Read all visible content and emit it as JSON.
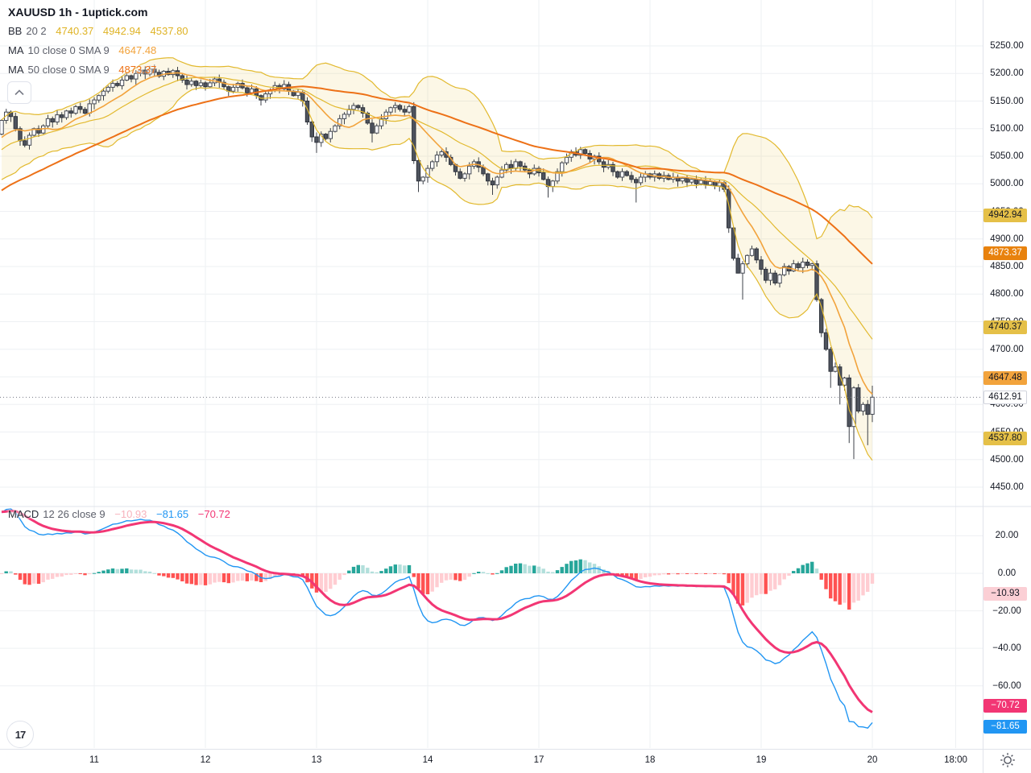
{
  "header": {
    "title": "XAUUSD 1h - 1uptick.com"
  },
  "legend": {
    "bb": {
      "name": "BB",
      "params": "20 2",
      "values": [
        "4740.37",
        "4942.94",
        "4537.80"
      ],
      "value_color": "#dfb325"
    },
    "ma10": {
      "name": "MA",
      "params": "10 close 0 SMA 9",
      "value": "4647.48",
      "value_color": "#f2a33c"
    },
    "ma50": {
      "name": "MA",
      "params": "50 close 0 SMA 9",
      "value": "4873.37",
      "value_color": "#ed7117"
    },
    "macd": {
      "name": "MACD",
      "params": "12 26 close 9",
      "values": [
        {
          "text": "−10.93",
          "color": "#f7b2bc"
        },
        {
          "text": "−81.65",
          "color": "#2196f3"
        },
        {
          "text": "−70.72",
          "color": "#f23674"
        }
      ]
    }
  },
  "price_axis": {
    "ticks": [
      {
        "text": "5250.00",
        "value": 5250
      },
      {
        "text": "5200.00",
        "value": 5200
      },
      {
        "text": "5150.00",
        "value": 5150
      },
      {
        "text": "5100.00",
        "value": 5100
      },
      {
        "text": "5050.00",
        "value": 5050
      },
      {
        "text": "5000.00",
        "value": 5000
      },
      {
        "text": "4950.00",
        "value": 4950
      },
      {
        "text": "4900.00",
        "value": 4900
      },
      {
        "text": "4850.00",
        "value": 4850
      },
      {
        "text": "4800.00",
        "value": 4800
      },
      {
        "text": "4750.00",
        "value": 4750
      },
      {
        "text": "4700.00",
        "value": 4700
      },
      {
        "text": "4650.00",
        "value": 4650
      },
      {
        "text": "4600.00",
        "value": 4600
      },
      {
        "text": "4550.00",
        "value": 4550
      },
      {
        "text": "4500.00",
        "value": 4500
      },
      {
        "text": "4450.00",
        "value": 4450
      }
    ],
    "badges": [
      {
        "name": "bb-upper-badge",
        "text": "4942.94",
        "value": 4942.94,
        "bg": "#e5c048",
        "fg": "#131722"
      },
      {
        "name": "ma50-badge",
        "text": "4873.37",
        "value": 4873.37,
        "bg": "#e8820e",
        "fg": "#ffffff"
      },
      {
        "name": "bb-basis-badge",
        "text": "4740.37",
        "value": 4740.37,
        "bg": "#e5c048",
        "fg": "#131722"
      },
      {
        "name": "ma10-badge",
        "text": "4647.48",
        "value": 4647.48,
        "bg": "#f2a33c",
        "fg": "#131722"
      },
      {
        "name": "bb-lower-badge",
        "text": "4537.80",
        "value": 4537.8,
        "bg": "#e5c048",
        "fg": "#131722"
      }
    ],
    "current": {
      "text": "4612.91",
      "value": 4612.91,
      "bg": "#ffffff",
      "fg": "#131722"
    }
  },
  "macd_axis": {
    "ticks": [
      {
        "text": "20.00",
        "value": 20
      },
      {
        "text": "0.00",
        "value": 0
      },
      {
        "text": "−20.00",
        "value": -20
      },
      {
        "text": "−40.00",
        "value": -40
      },
      {
        "text": "−60.00",
        "value": -60
      }
    ],
    "badges": [
      {
        "name": "macd-hist-badge",
        "text": "−10.93",
        "value": -10.93,
        "bg": "#fbcfd5",
        "fg": "#131722"
      },
      {
        "name": "macd-signal-badge",
        "text": "−70.72",
        "value": -70.72,
        "bg": "#f23674",
        "fg": "#ffffff"
      },
      {
        "name": "macd-line-badge",
        "text": "−81.65",
        "value": -81.65,
        "bg": "#2196f3",
        "fg": "#ffffff"
      }
    ]
  },
  "time_axis": {
    "ticks": [
      {
        "label": "11",
        "index": 20
      },
      {
        "label": "12",
        "index": 44
      },
      {
        "label": "13",
        "index": 68
      },
      {
        "label": "14",
        "index": 92
      },
      {
        "label": "17",
        "index": 116
      },
      {
        "label": "18",
        "index": 140
      },
      {
        "label": "19",
        "index": 164
      },
      {
        "label": "20",
        "index": 188
      },
      {
        "label": "18:00",
        "index": 206
      }
    ]
  },
  "chart_data": {
    "type": "candlestick",
    "symbol": "XAUUSD",
    "interval": "1h",
    "source": "1uptick.com",
    "price_axis_range": [
      4450,
      5250
    ],
    "macd_axis_range": [
      -90,
      25
    ],
    "candles_per_day": 24,
    "last_price": 4612.91,
    "closes": [
      5115,
      5130,
      5122,
      5100,
      5078,
      5070,
      5088,
      5100,
      5092,
      5105,
      5118,
      5112,
      5125,
      5120,
      5132,
      5128,
      5140,
      5135,
      5128,
      5145,
      5152,
      5160,
      5168,
      5175,
      5182,
      5178,
      5188,
      5196,
      5190,
      5200,
      5206,
      5199,
      5208,
      5202,
      5195,
      5204,
      5198,
      5205,
      5196,
      5188,
      5180,
      5186,
      5178,
      5183,
      5176,
      5183,
      5190,
      5184,
      5176,
      5168,
      5175,
      5182,
      5174,
      5165,
      5172,
      5160,
      5152,
      5163,
      5170,
      5178,
      5172,
      5180,
      5168,
      5160,
      5166,
      5150,
      5112,
      5085,
      5075,
      5090,
      5082,
      5095,
      5105,
      5118,
      5126,
      5135,
      5142,
      5138,
      5128,
      5110,
      5092,
      5105,
      5118,
      5130,
      5138,
      5142,
      5135,
      5130,
      5140,
      5042,
      5005,
      5012,
      5028,
      5040,
      5052,
      5058,
      5048,
      5035,
      5022,
      5010,
      5018,
      5032,
      5040,
      5030,
      5018,
      5005,
      4998,
      5012,
      5025,
      5035,
      5028,
      5040,
      5032,
      5025,
      5018,
      5028,
      5020,
      5008,
      4995,
      5005,
      5022,
      5038,
      5048,
      5058,
      5052,
      5062,
      5055,
      5045,
      5050,
      5040,
      5030,
      5035,
      5022,
      5012,
      5022,
      5015,
      5008,
      5002,
      5012,
      5018,
      5012,
      5018,
      5010,
      5015,
      5008,
      5012,
      5005,
      5010,
      5003,
      5008,
      5000,
      5006,
      4998,
      5004,
      4996,
      5002,
      4990,
      4920,
      4865,
      4838,
      4855,
      4870,
      4882,
      4862,
      4845,
      4825,
      4838,
      4820,
      4835,
      4850,
      4842,
      4855,
      4848,
      4858,
      4852,
      4855,
      4790,
      4730,
      4700,
      4660,
      4668,
      4635,
      4648,
      4560,
      4630,
      4588,
      4600,
      4582,
      4613
    ],
    "wick_overrides": {
      "32": {
        "high": 5214
      },
      "68": {
        "low": 5056
      },
      "80": {
        "low": 5075
      },
      "89": {
        "low": 5036
      },
      "90": {
        "low": 4985
      },
      "106": {
        "low": 4980
      },
      "118": {
        "low": 4975
      },
      "137": {
        "low": 4966
      },
      "159": {
        "low": 4845
      },
      "160": {
        "low": 4790
      },
      "179": {
        "low": 4630
      },
      "181": {
        "low": 4600
      },
      "183": {
        "low": 4530
      },
      "184": {
        "low": 4501
      },
      "187": {
        "low": 4526
      },
      "188": {
        "low": 4568,
        "high": 4634
      }
    },
    "prehistory_closes": [
      4800,
      4812,
      4798,
      4820,
      4832,
      4818,
      4840,
      4852,
      4838,
      4858,
      4870,
      4855,
      4872,
      4884,
      4868,
      4886,
      4898,
      4882,
      4900,
      4912,
      4896,
      4915,
      4928,
      4912,
      4932,
      4945,
      4930,
      4950,
      4962,
      4946,
      4966,
      4978,
      4962,
      4982,
      4994,
      4978,
      4996,
      5008,
      4992,
      5010,
      5022,
      5006,
      5025,
      5038,
      5022,
      5040,
      5052,
      5038,
      5055,
      5068,
      5052,
      5068,
      5080,
      5066,
      5078,
      5088,
      5075,
      5085,
      5095,
      5090
    ],
    "indicators": {
      "bollinger": {
        "length": 20,
        "mult": 2,
        "last_basis": 4740.37,
        "last_upper": 4942.94,
        "last_lower": 4537.8
      },
      "ma10": {
        "length": 10,
        "last": 4647.48
      },
      "ma50": {
        "length": 50,
        "last": 4873.37
      },
      "macd": {
        "fast": 12,
        "slow": 26,
        "signal": 9,
        "last_macd": -81.65,
        "last_signal": -70.72,
        "last_hist": -10.93
      }
    }
  },
  "colors": {
    "up_fill": "#ffffff",
    "up_border": "#454a54",
    "down_fill": "#4e535d",
    "down_border": "#2f333c",
    "wick": "#3c4048",
    "grid": "#eef0f3",
    "separator": "#e0e3eb",
    "bb_line": "#e2b92e",
    "bb_fill": "rgba(230,195,60,0.13)",
    "ma10": "#f2a33c",
    "ma50": "#ed7117",
    "macd_line": "#2196f3",
    "signal_line": "#f23674",
    "hist_pos_rise": "#26a69a",
    "hist_pos_fall": "#b2dfdb",
    "hist_neg_fall": "#ff5252",
    "hist_neg_rise": "#ffcdd2",
    "current_price_line": "#787b86"
  },
  "footer": {
    "logo_glyph": "17"
  }
}
